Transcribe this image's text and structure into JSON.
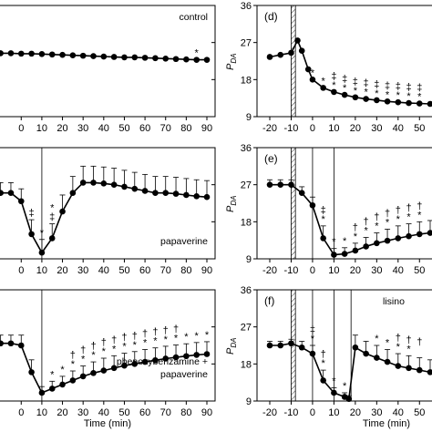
{
  "figure": {
    "xlabel": "Time (min)",
    "ylabel": "P",
    "ylabel_sub": "DA"
  },
  "chart_data": [
    {
      "id": "left-top",
      "type": "line",
      "annotation_lines": [
        "control"
      ],
      "xlim": [
        -20,
        90
      ],
      "xticks": [
        "0",
        "10",
        "20",
        "30",
        "40",
        "50",
        "60",
        "70",
        "80",
        "90"
      ],
      "x": [
        -20,
        -15,
        -10,
        -5,
        0,
        5,
        10,
        15,
        20,
        25,
        30,
        35,
        40,
        45,
        50,
        55,
        60,
        65,
        70,
        75,
        80,
        85,
        90
      ],
      "y": [
        24.5,
        24.5,
        24.4,
        24.4,
        24.3,
        24.3,
        24.2,
        24.1,
        24.0,
        23.9,
        23.8,
        23.7,
        23.6,
        23.5,
        23.4,
        23.4,
        23.3,
        23.2,
        23.1,
        23.0,
        22.9,
        22.8,
        22.8
      ],
      "stars": [
        {
          "x": 85,
          "text": "*"
        }
      ]
    },
    {
      "id": "left-middle",
      "type": "line",
      "annotation_lines": [
        "papaverine"
      ],
      "xlim": [
        -20,
        90
      ],
      "xticks": [
        "0",
        "10",
        "20",
        "30",
        "40",
        "50",
        "60",
        "70",
        "80",
        "90"
      ],
      "x": [
        -20,
        -15,
        -10,
        -5,
        0,
        5,
        10,
        15,
        20,
        25,
        30,
        35,
        40,
        45,
        50,
        55,
        60,
        65,
        70,
        75,
        80,
        85,
        90
      ],
      "y": [
        25,
        25,
        25,
        25,
        23,
        15,
        10.5,
        14,
        20.5,
        25,
        27.5,
        27.5,
        27.3,
        27,
        26.5,
        26,
        25.5,
        25,
        25,
        24.8,
        24.5,
        24.2,
        24
      ],
      "err": [
        2.5,
        2.5,
        2.5,
        2.5,
        3,
        3.5,
        3.2,
        3.5,
        4,
        4,
        4,
        4,
        4,
        4,
        4,
        4,
        4,
        4,
        4,
        4,
        4,
        4,
        4
      ],
      "vlines": [
        -20,
        10
      ],
      "stars": [
        {
          "x": 5,
          "text": "‡"
        },
        {
          "x": 10,
          "text": "*"
        },
        {
          "x": 15,
          "text": "‡"
        },
        {
          "x": 15,
          "text": "*"
        }
      ]
    },
    {
      "id": "left-bottom",
      "type": "line",
      "annotation_lines": [
        "phenoxybenzamine +",
        "papaverine"
      ],
      "xlim": [
        -20,
        90
      ],
      "xticks": [
        "0",
        "10",
        "20",
        "30",
        "40",
        "50",
        "60",
        "70",
        "80",
        "90"
      ],
      "x": [
        -20,
        -15,
        -10,
        -5,
        0,
        5,
        10,
        15,
        20,
        25,
        30,
        35,
        40,
        45,
        50,
        55,
        60,
        65,
        70,
        75,
        80,
        85,
        90
      ],
      "y": [
        23,
        23,
        23,
        23,
        22.5,
        16,
        11,
        12,
        13,
        14,
        15,
        15.8,
        16.4,
        17,
        17.6,
        18,
        18.5,
        18.9,
        19.3,
        19.6,
        19.9,
        20.2,
        20.4
      ],
      "err": [
        2,
        2,
        2,
        2,
        2.5,
        3,
        1.5,
        1.8,
        2,
        2.3,
        2.5,
        2.7,
        3,
        3,
        3,
        3,
        3,
        3,
        3,
        3,
        3,
        3,
        3
      ],
      "vlines": [
        -20,
        10
      ],
      "stars": [
        {
          "x": 15,
          "text": "*"
        },
        {
          "x": 20,
          "text": "*"
        },
        {
          "x": 25,
          "text": "*"
        },
        {
          "x": 30,
          "text": "*"
        },
        {
          "x": 35,
          "text": "*"
        },
        {
          "x": 40,
          "text": "*"
        },
        {
          "x": 45,
          "text": "*"
        },
        {
          "x": 50,
          "text": "*"
        },
        {
          "x": 55,
          "text": "*"
        },
        {
          "x": 60,
          "text": "*"
        },
        {
          "x": 65,
          "text": "*"
        },
        {
          "x": 70,
          "text": "*"
        },
        {
          "x": 75,
          "text": "*"
        },
        {
          "x": 80,
          "text": "*"
        },
        {
          "x": 85,
          "text": "*"
        },
        {
          "x": 90,
          "text": "*"
        }
      ],
      "daggers": [
        {
          "x": 25,
          "text": "†"
        },
        {
          "x": 30,
          "text": "†"
        },
        {
          "x": 35,
          "text": "†"
        },
        {
          "x": 40,
          "text": "†"
        },
        {
          "x": 45,
          "text": "†"
        },
        {
          "x": 50,
          "text": "†"
        },
        {
          "x": 55,
          "text": "†"
        },
        {
          "x": 60,
          "text": "†"
        },
        {
          "x": 65,
          "text": "†"
        },
        {
          "x": 70,
          "text": "†"
        },
        {
          "x": 75,
          "text": "†"
        }
      ]
    },
    {
      "id": "right-top",
      "type": "line",
      "panel_label": "(d)",
      "ylim": [
        9,
        36
      ],
      "yticks": [
        "9",
        "18",
        "27",
        "36"
      ],
      "xlim": [
        -20,
        55
      ],
      "xticks": [
        "-20",
        "-10",
        "0",
        "10",
        "20",
        "30",
        "40",
        "50"
      ],
      "x": [
        -20,
        -15,
        -10,
        -7,
        -5,
        -2,
        0,
        5,
        10,
        15,
        20,
        25,
        30,
        35,
        40,
        45,
        50,
        55
      ],
      "y": [
        23.5,
        24,
        24.5,
        27.5,
        25,
        20.5,
        18,
        16,
        15,
        14.3,
        13.7,
        13.3,
        13,
        12.7,
        12.5,
        12.3,
        12.2,
        12.1
      ],
      "hatch": [
        -10,
        -8
      ],
      "stars": [
        {
          "x": 0,
          "text": "*"
        },
        {
          "x": 5,
          "text": "*"
        },
        {
          "x": 10,
          "text": "*"
        },
        {
          "x": 15,
          "text": "*"
        },
        {
          "x": 20,
          "text": "*"
        },
        {
          "x": 25,
          "text": "*"
        },
        {
          "x": 30,
          "text": "*"
        },
        {
          "x": 35,
          "text": "*"
        },
        {
          "x": 40,
          "text": "*"
        },
        {
          "x": 45,
          "text": "*"
        },
        {
          "x": 50,
          "text": "*"
        }
      ],
      "daggers": [
        {
          "x": 10,
          "text": "‡"
        },
        {
          "x": 15,
          "text": "‡"
        },
        {
          "x": 20,
          "text": "‡"
        },
        {
          "x": 25,
          "text": "‡"
        },
        {
          "x": 30,
          "text": "‡"
        },
        {
          "x": 35,
          "text": "‡"
        },
        {
          "x": 40,
          "text": "‡"
        },
        {
          "x": 45,
          "text": "‡"
        },
        {
          "x": 50,
          "text": "‡"
        }
      ]
    },
    {
      "id": "right-middle",
      "type": "line",
      "panel_label": "(e)",
      "ylim": [
        9,
        36
      ],
      "yticks": [
        "9",
        "18",
        "27",
        "36"
      ],
      "xlim": [
        -20,
        55
      ],
      "xticks": [
        "-20",
        "-10",
        "0",
        "10",
        "20",
        "30",
        "40",
        "50"
      ],
      "x": [
        -20,
        -15,
        -10,
        -5,
        0,
        5,
        10,
        15,
        20,
        25,
        30,
        35,
        40,
        45,
        50,
        55
      ],
      "y": [
        27,
        27,
        27,
        25,
        22,
        14,
        10,
        10.2,
        11,
        12,
        12.8,
        13.4,
        14,
        14.5,
        15,
        15.3
      ],
      "err": [
        1.2,
        1.2,
        1.2,
        1.5,
        2,
        3,
        1.5,
        1.5,
        1.8,
        2.2,
        2.5,
        2.8,
        3,
        3,
        3,
        3
      ],
      "hatch": [
        -10,
        -8
      ],
      "vlines": [
        0,
        10
      ],
      "stars": [
        {
          "x": 5,
          "text": "*"
        },
        {
          "x": 10,
          "text": "*"
        },
        {
          "x": 15,
          "text": "*"
        },
        {
          "x": 20,
          "text": "*"
        },
        {
          "x": 25,
          "text": "*"
        },
        {
          "x": 30,
          "text": "*"
        },
        {
          "x": 35,
          "text": "*"
        },
        {
          "x": 40,
          "text": "*"
        },
        {
          "x": 45,
          "text": "*"
        },
        {
          "x": 50,
          "text": "*"
        }
      ],
      "daggers": [
        {
          "x": 5,
          "text": "‡"
        },
        {
          "x": 20,
          "text": "†"
        },
        {
          "x": 25,
          "text": "†"
        },
        {
          "x": 30,
          "text": "†"
        },
        {
          "x": 35,
          "text": "†"
        },
        {
          "x": 40,
          "text": "†"
        },
        {
          "x": 45,
          "text": "†"
        },
        {
          "x": 50,
          "text": "†"
        }
      ]
    },
    {
      "id": "right-bottom",
      "type": "line",
      "panel_label": "(f)",
      "annotation_lines": [
        "lisino"
      ],
      "ylim": [
        9,
        36
      ],
      "yticks": [
        "9",
        "18",
        "27",
        "36"
      ],
      "xlim": [
        -20,
        55
      ],
      "xticks": [
        "-20",
        "-10",
        "0",
        "10",
        "20",
        "30",
        "40",
        "50"
      ],
      "x": [
        -20,
        -15,
        -10,
        -5,
        0,
        5,
        10,
        15,
        17,
        20,
        25,
        30,
        35,
        40,
        45,
        50,
        55
      ],
      "y": [
        22.5,
        22.5,
        23,
        22,
        20.5,
        14,
        11,
        10,
        9.5,
        22,
        20.5,
        19.5,
        18.5,
        17.5,
        17,
        16.5,
        16
      ],
      "err": [
        1,
        1,
        1,
        1.5,
        2,
        2.5,
        1.2,
        1,
        0.8,
        3,
        3,
        3,
        3,
        3,
        3,
        3,
        3
      ],
      "hatch": [
        -10,
        -8
      ],
      "vlines": [
        0,
        10,
        18
      ],
      "stars": [
        {
          "x": 0,
          "text": "*"
        },
        {
          "x": 5,
          "text": "*"
        },
        {
          "x": 10,
          "text": "*"
        },
        {
          "x": 15,
          "text": "*"
        },
        {
          "x": 30,
          "text": "*"
        },
        {
          "x": 35,
          "text": "*"
        },
        {
          "x": 40,
          "text": "*"
        },
        {
          "x": 45,
          "text": "*"
        }
      ],
      "daggers": [
        {
          "x": 0,
          "text": "‡"
        },
        {
          "x": 5,
          "text": "†"
        },
        {
          "x": 40,
          "text": "†"
        },
        {
          "x": 45,
          "text": "†"
        },
        {
          "x": 50,
          "text": "†"
        }
      ]
    }
  ]
}
